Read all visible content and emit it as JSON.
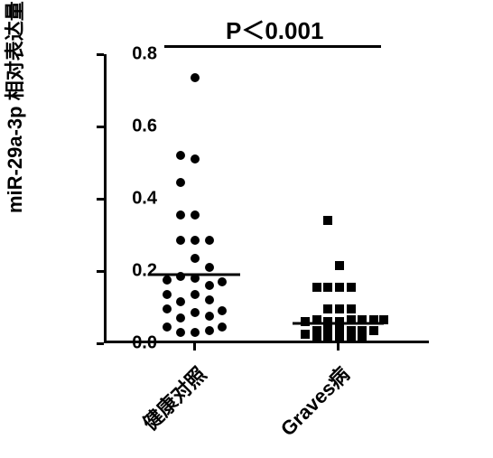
{
  "chart": {
    "type": "scatter-dot",
    "background_color": "#ffffff",
    "axis_color": "#000000",
    "axis_line_width": 3,
    "tick_line_width": 3,
    "y_axis": {
      "title": "miR-29a-3p 相对表达量",
      "title_fontsize": 22,
      "min": 0.0,
      "max": 0.8,
      "ticks": [
        0.0,
        0.2,
        0.4,
        0.6,
        0.8
      ],
      "tick_labels": [
        "0.0",
        "0.2",
        "0.4",
        "0.6",
        "0.8"
      ],
      "tick_fontsize": 20
    },
    "x_axis": {
      "categories": [
        "健康对照",
        "Graves病"
      ],
      "tick_fontsize": 22,
      "tick_rotation": -45
    },
    "annotation": {
      "text": "P＜0.001",
      "fontsize": 26,
      "line_y": 0.82
    },
    "marker_size": 10,
    "marker_color": "#000000",
    "series": [
      {
        "name": "健康对照",
        "x_center": 0.28,
        "marker": "circle",
        "median": 0.19,
        "median_line_width": 0.28,
        "points": [
          {
            "dx": -0.085,
            "y": 0.175
          },
          {
            "dx": -0.085,
            "y": 0.135
          },
          {
            "dx": -0.085,
            "y": 0.095
          },
          {
            "dx": -0.085,
            "y": 0.045
          },
          {
            "dx": -0.045,
            "y": 0.52
          },
          {
            "dx": -0.045,
            "y": 0.445
          },
          {
            "dx": -0.045,
            "y": 0.355
          },
          {
            "dx": -0.045,
            "y": 0.285
          },
          {
            "dx": -0.045,
            "y": 0.185
          },
          {
            "dx": -0.045,
            "y": 0.115
          },
          {
            "dx": -0.045,
            "y": 0.07
          },
          {
            "dx": -0.045,
            "y": 0.03
          },
          {
            "dx": 0.0,
            "y": 0.735
          },
          {
            "dx": 0.0,
            "y": 0.51
          },
          {
            "dx": 0.0,
            "y": 0.355
          },
          {
            "dx": 0.0,
            "y": 0.285
          },
          {
            "dx": 0.0,
            "y": 0.235
          },
          {
            "dx": 0.0,
            "y": 0.18
          },
          {
            "dx": 0.0,
            "y": 0.135
          },
          {
            "dx": 0.0,
            "y": 0.085
          },
          {
            "dx": 0.0,
            "y": 0.03
          },
          {
            "dx": 0.045,
            "y": 0.285
          },
          {
            "dx": 0.045,
            "y": 0.21
          },
          {
            "dx": 0.045,
            "y": 0.16
          },
          {
            "dx": 0.045,
            "y": 0.12
          },
          {
            "dx": 0.045,
            "y": 0.075
          },
          {
            "dx": 0.045,
            "y": 0.035
          },
          {
            "dx": 0.085,
            "y": 0.17
          },
          {
            "dx": 0.085,
            "y": 0.09
          },
          {
            "dx": 0.085,
            "y": 0.045
          }
        ]
      },
      {
        "name": "Graves病",
        "x_center": 0.72,
        "marker": "square",
        "median": 0.055,
        "median_line_width": 0.28,
        "points": [
          {
            "dx": -0.1,
            "y": 0.06
          },
          {
            "dx": -0.1,
            "y": 0.025
          },
          {
            "dx": -0.065,
            "y": 0.155
          },
          {
            "dx": -0.065,
            "y": 0.065
          },
          {
            "dx": -0.065,
            "y": 0.035
          },
          {
            "dx": -0.065,
            "y": 0.015
          },
          {
            "dx": -0.03,
            "y": 0.34
          },
          {
            "dx": -0.03,
            "y": 0.155
          },
          {
            "dx": -0.03,
            "y": 0.095
          },
          {
            "dx": -0.03,
            "y": 0.06
          },
          {
            "dx": -0.03,
            "y": 0.035
          },
          {
            "dx": -0.03,
            "y": 0.015
          },
          {
            "dx": 0.005,
            "y": 0.215
          },
          {
            "dx": 0.005,
            "y": 0.155
          },
          {
            "dx": 0.005,
            "y": 0.095
          },
          {
            "dx": 0.005,
            "y": 0.06
          },
          {
            "dx": 0.005,
            "y": 0.035
          },
          {
            "dx": 0.005,
            "y": 0.015
          },
          {
            "dx": 0.04,
            "y": 0.155
          },
          {
            "dx": 0.04,
            "y": 0.095
          },
          {
            "dx": 0.04,
            "y": 0.065
          },
          {
            "dx": 0.04,
            "y": 0.035
          },
          {
            "dx": 0.04,
            "y": 0.015
          },
          {
            "dx": 0.075,
            "y": 0.065
          },
          {
            "dx": 0.075,
            "y": 0.035
          },
          {
            "dx": 0.075,
            "y": 0.015
          },
          {
            "dx": 0.11,
            "y": 0.065
          },
          {
            "dx": 0.11,
            "y": 0.035
          },
          {
            "dx": 0.14,
            "y": 0.065
          }
        ]
      }
    ]
  }
}
